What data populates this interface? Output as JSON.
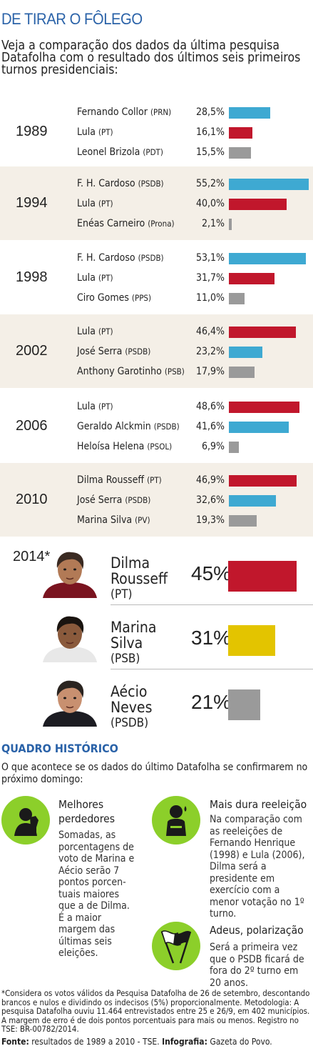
{
  "headline": "DE TIRAR O FÔLEGO",
  "intro": "Veja a comparação dos dados da última pesquisa Datafolha com o resultado dos últimos seis primeiros turnos presidenciais:",
  "colors": {
    "psdb": "#3ea9d2",
    "pt": "#c1172c",
    "other": "#9a9a9a",
    "psb2014": "#e3c400",
    "accent": "#2a62a8",
    "icon_green": "#8ccf2a"
  },
  "chart_data": {
    "type": "bar",
    "title": "DE TIRAR O FÔLEGO",
    "unit": "%",
    "xlim": [
      0,
      55.2
    ],
    "elections": [
      {
        "year": "1989",
        "candidates": [
          {
            "name": "Fernando Collor",
            "party": "(PRN)",
            "label": "28,5%",
            "value": 28.5,
            "color": "psdb"
          },
          {
            "name": "Lula",
            "party": "(PT)",
            "label": "16,1%",
            "value": 16.1,
            "color": "pt"
          },
          {
            "name": "Leonel Brizola",
            "party": "(PDT)",
            "label": "15,5%",
            "value": 15.5,
            "color": "other"
          }
        ]
      },
      {
        "year": "1994",
        "candidates": [
          {
            "name": "F. H. Cardoso",
            "party": "(PSDB)",
            "label": "55,2%",
            "value": 55.2,
            "color": "psdb"
          },
          {
            "name": "Lula",
            "party": "(PT)",
            "label": "40,0%",
            "value": 40.0,
            "color": "pt"
          },
          {
            "name": "Enéas Carneiro",
            "party": "(Prona)",
            "label": "2,1%",
            "value": 2.1,
            "color": "other"
          }
        ]
      },
      {
        "year": "1998",
        "candidates": [
          {
            "name": "F. H. Cardoso",
            "party": "(PSDB)",
            "label": "53,1%",
            "value": 53.1,
            "color": "psdb"
          },
          {
            "name": "Lula",
            "party": "(PT)",
            "label": "31,7%",
            "value": 31.7,
            "color": "pt"
          },
          {
            "name": "Ciro Gomes",
            "party": "(PPS)",
            "label": "11,0%",
            "value": 11.0,
            "color": "other"
          }
        ]
      },
      {
        "year": "2002",
        "candidates": [
          {
            "name": "Lula",
            "party": "(PT)",
            "label": "46,4%",
            "value": 46.4,
            "color": "pt"
          },
          {
            "name": "José Serra",
            "party": "(PSDB)",
            "label": "23,2%",
            "value": 23.2,
            "color": "psdb"
          },
          {
            "name": "Anthony Garotinho",
            "party": "(PSB)",
            "label": "17,9%",
            "value": 17.9,
            "color": "other"
          }
        ]
      },
      {
        "year": "2006",
        "candidates": [
          {
            "name": "Lula",
            "party": "(PT)",
            "label": "48,6%",
            "value": 48.6,
            "color": "pt"
          },
          {
            "name": "Geraldo Alckmin",
            "party": "(PSDB)",
            "label": "41,6%",
            "value": 41.6,
            "color": "psdb"
          },
          {
            "name": "Heloísa Helena",
            "party": "(PSOL)",
            "label": "6,9%",
            "value": 6.9,
            "color": "other"
          }
        ]
      },
      {
        "year": "2010",
        "candidates": [
          {
            "name": "Dilma Rousseff",
            "party": "(PT)",
            "label": "46,9%",
            "value": 46.9,
            "color": "pt"
          },
          {
            "name": "José Serra",
            "party": "(PSDB)",
            "label": "32,6%",
            "value": 32.6,
            "color": "psdb"
          },
          {
            "name": "Marina Silva",
            "party": "(PV)",
            "label": "19,3%",
            "value": 19.3,
            "color": "other"
          }
        ]
      }
    ],
    "poll_2014": {
      "year": "2014*",
      "candidates": [
        {
          "name": "Dilma Rousseff",
          "party": "(PT)",
          "label": "45%",
          "value": 45,
          "color": "pt",
          "icon": "dilma-portrait"
        },
        {
          "name": "Marina Silva",
          "party": "(PSB)",
          "label": "31%",
          "value": 31,
          "color": "psb2014",
          "icon": "marina-portrait"
        },
        {
          "name": "Aécio Neves",
          "party": "(PSDB)",
          "label": "21%",
          "value": 21,
          "color": "other",
          "icon": "aecio-portrait"
        }
      ]
    }
  },
  "quadro": {
    "title": "QUADRO HISTÓRICO",
    "subtitle": "O que acontece se os dados do último Datafolha se confirmarem no próximo domingo:",
    "boxes": [
      {
        "title": "Melhores perdedores",
        "text": "Somadas, as porcentagens de voto de Marina e Aécio serão 7 pontos porcen-tuais maiores que a de Dilma. É a maior margem das últimas seis eleições.",
        "icon": "thumbs-down-icon"
      },
      {
        "title": "Mais dura reeleição",
        "text": "Na comparação com as reeleições de Fernando Henrique (1998) e Lula (2006), Dilma será a presidente em exercício com a menor votação no 1º turno.",
        "icon": "sweating-person-icon"
      },
      {
        "title": "Adeus, polarização",
        "text": "Será a primeira vez que o PSDB ficará de fora do 2º turno em 20 anos.",
        "icon": "waving-flags-icon"
      }
    ]
  },
  "footnote": "*Considera os votos válidos da Pesquisa Datafolha de 26 de setembro, descontando brancos e nulos e dividindo os indecisos (5%) proporcionalmente. Metodologia: A pesquisa Datafolha ouviu 11.464 entrevistados entre 25 e 26/9, em 402 municípios. A margem de erro é de dois pontos porcentuais para mais ou menos. Registro no TSE: BR-00782/2014.",
  "source": {
    "label1": "Fonte:",
    "text1": "resultados de 1989 a 2010 - TSE.",
    "label2": "Infografia:",
    "text2": "Gazeta do Povo."
  }
}
